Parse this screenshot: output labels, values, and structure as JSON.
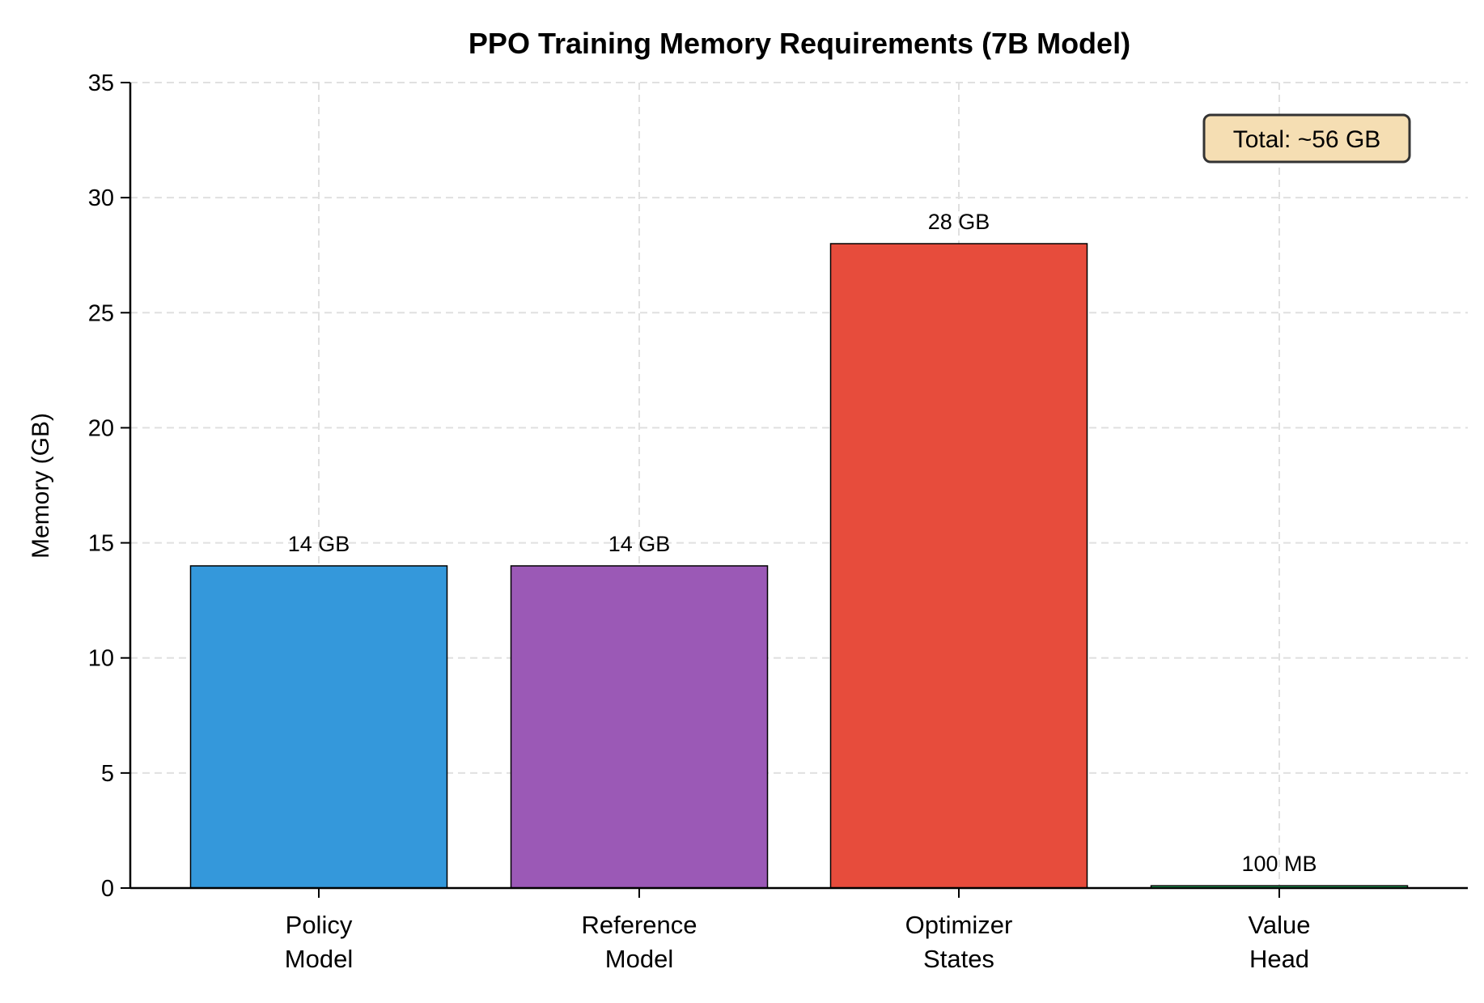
{
  "chart_data": {
    "type": "bar",
    "title": "PPO Training Memory Requirements (7B Model)",
    "xlabel": "",
    "ylabel": "Memory (GB)",
    "ylim": [
      0,
      35
    ],
    "yticks": [
      "0",
      "5",
      "10",
      "15",
      "20",
      "25",
      "30",
      "35"
    ],
    "categories": [
      [
        "Policy",
        "Model"
      ],
      [
        "Reference",
        "Model"
      ],
      [
        "Optimizer",
        "States"
      ],
      [
        "Value",
        "Head"
      ]
    ],
    "values": [
      14,
      14,
      28,
      0.1
    ],
    "data_labels": [
      "14 GB",
      "14 GB",
      "28 GB",
      "100 MB"
    ],
    "colors": [
      "#3498db",
      "#9b59b6",
      "#e74c3c",
      "#2ecc71"
    ],
    "grid": true,
    "annotation": "Total: ~56 GB",
    "annotation_bg": "#f5deb3"
  }
}
